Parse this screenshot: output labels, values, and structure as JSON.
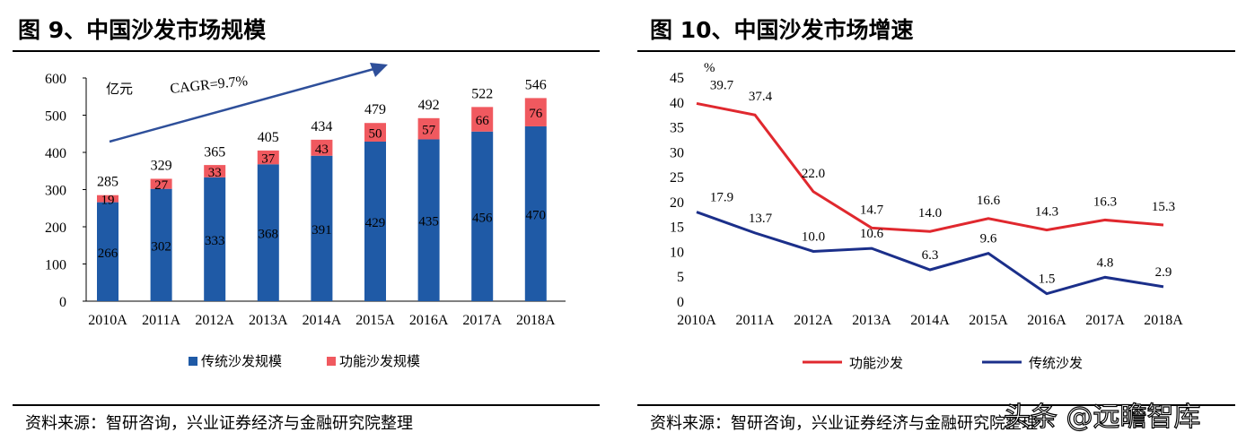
{
  "chart_data": [
    {
      "type": "bar",
      "stacked": true,
      "title": "图 9、中国沙发市场规模",
      "unit_label": "亿元",
      "annotation": "CAGR=9.7%",
      "categories": [
        "2010A",
        "2011A",
        "2012A",
        "2013A",
        "2014A",
        "2015A",
        "2016A",
        "2017A",
        "2018A"
      ],
      "series": [
        {
          "name": "传统沙发规模",
          "color": "#1F5AA6",
          "values": [
            266,
            302,
            333,
            368,
            391,
            429,
            435,
            456,
            470
          ]
        },
        {
          "name": "功能沙发规模",
          "color": "#F0595F",
          "values": [
            19,
            27,
            33,
            37,
            43,
            50,
            57,
            66,
            76
          ]
        }
      ],
      "totals": [
        285,
        329,
        365,
        405,
        434,
        479,
        492,
        522,
        546
      ],
      "ylim": [
        0,
        600
      ],
      "yticks": [
        0,
        100,
        200,
        300,
        400,
        500,
        600
      ],
      "legend": "bottom",
      "source": "资料来源：智研咨询，兴业证券经济与金融研究院整理"
    },
    {
      "type": "line",
      "title": "图 10、中国沙发市场增速",
      "ylabel": "%",
      "categories": [
        "2010A",
        "2011A",
        "2012A",
        "2013A",
        "2014A",
        "2015A",
        "2016A",
        "2017A",
        "2018A"
      ],
      "series": [
        {
          "name": "功能沙发",
          "color": "#E0282E",
          "values": [
            39.7,
            37.4,
            22.0,
            14.7,
            14.0,
            16.6,
            14.3,
            16.3,
            15.3
          ]
        },
        {
          "name": "传统沙发",
          "color": "#1B2F8A",
          "values": [
            17.9,
            13.7,
            10.0,
            10.6,
            6.3,
            9.6,
            1.5,
            4.8,
            2.9
          ]
        }
      ],
      "ylim": [
        0,
        45
      ],
      "yticks": [
        0,
        5,
        10,
        15,
        20,
        25,
        30,
        35,
        40,
        45
      ],
      "legend": "bottom",
      "source": "资料来源：智研咨询，兴业证券经济与金融研究院整理"
    }
  ],
  "watermark": "头条 @远瞻智库"
}
